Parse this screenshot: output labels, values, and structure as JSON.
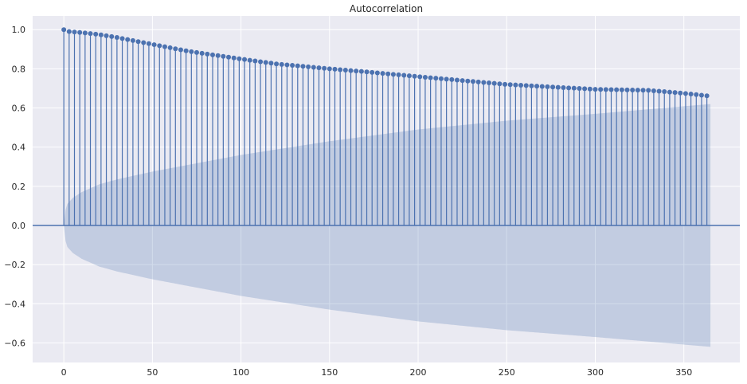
{
  "chart_data": {
    "type": "stem",
    "title": "Autocorrelation",
    "xlabel": "",
    "ylabel": "",
    "xlim": [
      -17.6,
      381.6
    ],
    "ylim": [
      -0.7,
      1.07
    ],
    "xticks": [
      0,
      50,
      100,
      150,
      200,
      250,
      300,
      350
    ],
    "xtick_labels": [
      "0",
      "50",
      "100",
      "150",
      "200",
      "250",
      "300",
      "350"
    ],
    "yticks": [
      -0.6,
      -0.4,
      -0.2,
      0.0,
      0.2,
      0.4,
      0.6,
      0.8,
      1.0
    ],
    "ytick_labels": [
      "−0.6",
      "−0.4",
      "−0.2",
      "0.0",
      "0.2",
      "0.4",
      "0.6",
      "0.8",
      "1.0"
    ],
    "grid": true,
    "lag_step": 3,
    "acf_curve": {
      "x": [
        0,
        3,
        10,
        20,
        30,
        50,
        70,
        100,
        120,
        150,
        170,
        200,
        250,
        300,
        330,
        350,
        365
      ],
      "y": [
        1.0,
        0.99,
        0.985,
        0.975,
        0.96,
        0.925,
        0.89,
        0.85,
        0.825,
        0.8,
        0.785,
        0.76,
        0.72,
        0.695,
        0.69,
        0.675,
        0.66
      ]
    },
    "confidence_band": {
      "x": [
        0,
        1,
        2,
        5,
        10,
        20,
        30,
        50,
        100,
        150,
        200,
        250,
        300,
        365
      ],
      "upper": [
        0.0,
        0.08,
        0.11,
        0.14,
        0.17,
        0.21,
        0.235,
        0.275,
        0.36,
        0.43,
        0.49,
        0.535,
        0.57,
        0.62
      ],
      "lower": [
        0.0,
        -0.08,
        -0.11,
        -0.14,
        -0.17,
        -0.21,
        -0.235,
        -0.275,
        -0.36,
        -0.43,
        -0.49,
        -0.535,
        -0.57,
        -0.62
      ]
    },
    "colors": {
      "background": "#eaeaf2",
      "grid": "#ffffff",
      "stem": "#4c72b0",
      "band": "#4c72b0",
      "zero_line": "#4c72b0",
      "text": "#262626"
    }
  }
}
